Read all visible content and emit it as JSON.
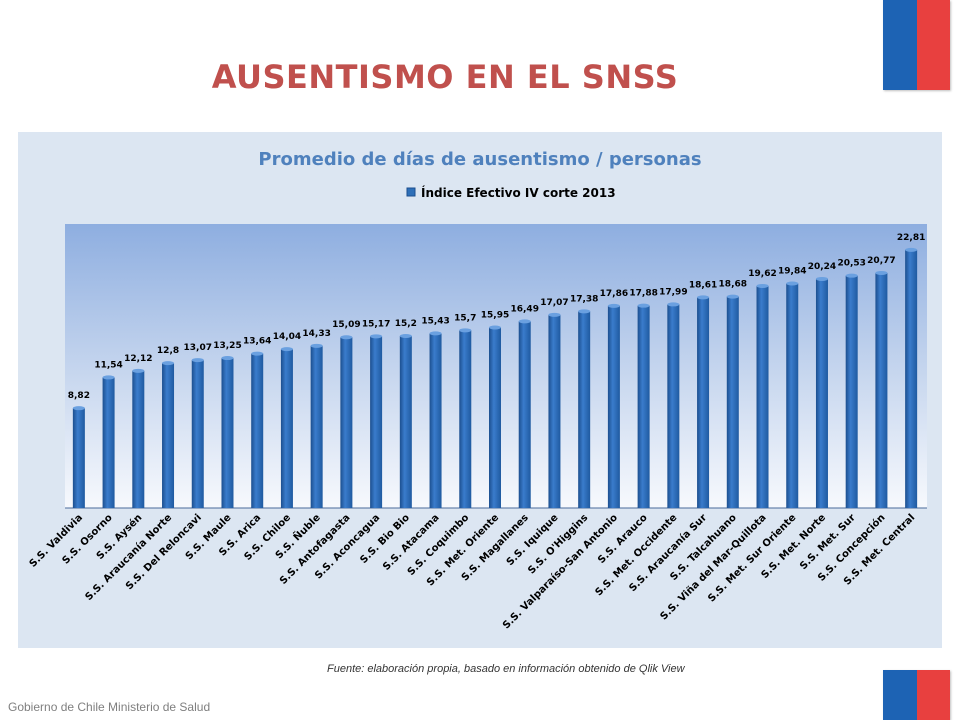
{
  "page": {
    "title": "AUSENTISMO EN EL SNSS",
    "source": "Fuente: elaboración propia, basado en información obtenido de Qlik View",
    "footer": "Gobierno de Chile  Ministerio de Salud"
  },
  "colors": {
    "flag_blue": "#1d63b4",
    "flag_red": "#e8403f",
    "title": "#c0504d",
    "bar": "#2e6fb8",
    "chart_title": "#4f81bd"
  },
  "chart_data": {
    "type": "bar",
    "title": "Promedio de  días de ausentismo / personas",
    "xlabel": "",
    "ylabel": "",
    "ylim": [
      0,
      24
    ],
    "grid": false,
    "legend": "top",
    "categories": [
      "S.S. Valdivia",
      "S.S. Osorno",
      "S.S. Aysén",
      "S.S. Araucanía Norte",
      "S.S. Del Reloncavi",
      "S.S. Maule",
      "S.S. Arica",
      "S.S. Chiloe",
      "S.S. Ñuble",
      "S.S. Antofagasta",
      "S.S. Aconcagua",
      "S.S. Bio Bio",
      "S.S. Atacama",
      "S.S. Coquimbo",
      "S.S. Met. Oriente",
      "S.S. Magallanes",
      "S.S. Iquique",
      "S.S. O'Higgins",
      "S.S. Valparaíso-San Antonio",
      "S.S. Arauco",
      "S.S. Met. Occidente",
      "S.S. Araucanía Sur",
      "S.S. Talcahuano",
      "S.S. Viña del Mar-Quillota",
      "S.S. Met. Sur Oriente",
      "S.S. Met. Norte",
      "S.S. Met. Sur",
      "S.S. Concepción",
      "S.S. Met. Central"
    ],
    "series": [
      {
        "name": "Índice Efectivo IV corte 2013",
        "values": [
          8.82,
          11.54,
          12.12,
          12.8,
          13.07,
          13.25,
          13.64,
          14.04,
          14.33,
          15.09,
          15.17,
          15.2,
          15.43,
          15.7,
          15.95,
          16.49,
          17.07,
          17.38,
          17.86,
          17.88,
          17.99,
          18.61,
          18.68,
          19.62,
          19.84,
          20.24,
          20.53,
          20.77,
          22.81
        ],
        "labels": [
          "8,82",
          "11,54",
          "12,12",
          "12,8",
          "13,07",
          "13,25",
          "13,64",
          "14,04",
          "14,33",
          "15,09",
          "15,17",
          "15,2",
          "15,43",
          "15,7",
          "15,95",
          "16,49",
          "17,07",
          "17,38",
          "17,86",
          "17,88",
          "17,99",
          "18,61",
          "18,68",
          "19,62",
          "19,84",
          "20,24",
          "20,53",
          "20,77",
          "22,81"
        ]
      }
    ]
  }
}
